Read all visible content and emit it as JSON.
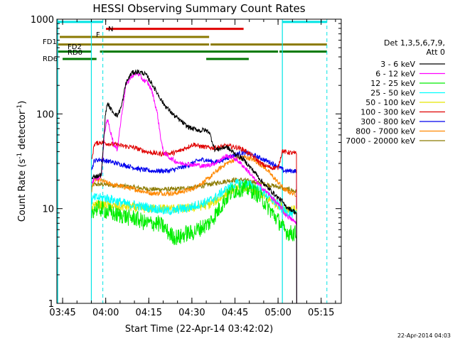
{
  "chart_data": {
    "type": "line",
    "title": "HESSI Observing Summary Count Rates",
    "xlabel": "Start Time (22-Apr-14 03:42:02)",
    "ylabel_main": "Count Rate (s",
    "ylabel_sup1": "-1",
    "ylabel_mid": " detector",
    "ylabel_sup2": "-1",
    "ylabel_end": ")",
    "yscale": "log",
    "ylim": [
      1,
      1000
    ],
    "xlim_minutes": [
      223.0,
      322.0
    ],
    "x_ticks": [
      {
        "minute": 225,
        "label": "03:45"
      },
      {
        "minute": 240,
        "label": "04:00"
      },
      {
        "minute": 255,
        "label": "04:15"
      },
      {
        "minute": 270,
        "label": "04:30"
      },
      {
        "minute": 285,
        "label": "04:45"
      },
      {
        "minute": 300,
        "label": "05:00"
      },
      {
        "minute": 315,
        "label": "05:15"
      }
    ],
    "y_ticks": [
      {
        "value": 1,
        "label": "1"
      },
      {
        "value": 10,
        "label": "10"
      },
      {
        "value": 100,
        "label": "100"
      },
      {
        "value": 1000,
        "label": "1000"
      }
    ],
    "legend_header": [
      "Det 1,3,5,6,7,9,",
      "Att 0"
    ],
    "date_stamp": "22-Apr-2014 04:03",
    "flag_labels": {
      "n": "N",
      "f": "F",
      "fd1": "FD1",
      "fd2": "FD2",
      "rd0": "RD0",
      "rd6": "RD6"
    },
    "flags": [
      {
        "name": "N",
        "color": "#00e5e5",
        "level": 935,
        "segments": [
          [
            223.3,
            239.0
          ],
          [
            301.5,
            317.0
          ]
        ]
      },
      {
        "name": "F",
        "color": "#e00000",
        "level": 790,
        "segments": [
          [
            240.1,
            288.0
          ]
        ]
      },
      {
        "name": "FD1",
        "color": "#8b7a00",
        "level": 650,
        "segments": [
          [
            224.0,
            276.0
          ]
        ]
      },
      {
        "name": "FD2",
        "color": "#8b7a00",
        "level": 540,
        "segments": [
          [
            223.3,
            276.0
          ],
          [
            276.5,
            317.0
          ]
        ]
      },
      {
        "name": "RD0",
        "color": "#007700",
        "level": 455,
        "segments": [
          [
            223.3,
            235.0
          ],
          [
            238.0,
            300.0
          ],
          [
            300.5,
            317.0
          ]
        ]
      },
      {
        "name": "RD6",
        "color": "#007700",
        "level": 380,
        "segments": [
          [
            225.0,
            236.8
          ],
          [
            275.0,
            289.8
          ]
        ]
      }
    ],
    "vlines_solid": [
      223.3,
      235.0,
      301.5
    ],
    "vlines_dashed": [
      239.0,
      317.0
    ],
    "data_start": 235.0,
    "data_end": 306.5,
    "series": [
      {
        "name": "3 - 6 keV",
        "color": "#000000",
        "x": [
          235.0,
          236.0,
          237.0,
          238.5,
          239.8,
          240.5,
          242.0,
          244.0,
          245.5,
          247.0,
          249.0,
          251.0,
          253.0,
          254.0,
          256.0,
          258.0,
          260.0,
          262.0,
          264.0,
          266.0,
          268.0,
          270.0,
          272.0,
          273.0,
          274.0,
          276.0,
          278.0,
          280.0,
          282.0,
          284.0,
          286.0,
          288.0,
          290.0,
          292.0,
          294.0,
          296.0,
          298.0,
          300.0,
          301.5,
          302.0,
          304.0,
          306.5
        ],
        "y": [
          20,
          22,
          22,
          23,
          90,
          130,
          110,
          95,
          120,
          210,
          270,
          280,
          270,
          260,
          210,
          165,
          130,
          110,
          95,
          85,
          75,
          70,
          68,
          66,
          68,
          65,
          42,
          43,
          45,
          40,
          36,
          33,
          28,
          24,
          20,
          17,
          15,
          13,
          12,
          11,
          10,
          9
        ]
      },
      {
        "name": "6 - 12 keV",
        "color": "#ff00ff",
        "x": [
          235.0,
          236.0,
          238.5,
          239.5,
          240.5,
          242.0,
          243.0,
          244.0,
          245.5,
          247.0,
          249.0,
          251.0,
          253.0,
          254.5,
          256.0,
          258.0,
          259.0,
          260.0,
          262.0,
          264.0,
          266.0,
          268.0,
          270.0,
          272.0,
          274.0,
          276.0,
          278.0,
          280.0,
          282.0,
          284.0,
          286.0,
          288.0,
          290.0,
          292.0,
          294.0,
          296.0,
          298.0,
          300.0,
          301.5,
          302.0,
          304.0,
          306.5
        ],
        "y": [
          19,
          20,
          22,
          60,
          90,
          60,
          46,
          42,
          95,
          200,
          250,
          270,
          230,
          215,
          180,
          100,
          60,
          40,
          35,
          32,
          30,
          30,
          29,
          29,
          28,
          29,
          30,
          33,
          36,
          35,
          32,
          28,
          24,
          20,
          17,
          15,
          13,
          11,
          10,
          9,
          8,
          7
        ]
      },
      {
        "name": "12 - 25 keV",
        "color": "#00ee00",
        "x": [
          235.0,
          236.0,
          238.0,
          240.0,
          242.0,
          244.0,
          246.0,
          248.0,
          250.0,
          252.0,
          254.0,
          256.0,
          258.0,
          260.0,
          262.0,
          264.0,
          266.0,
          268.0,
          270.0,
          272.0,
          274.0,
          276.0,
          278.0,
          280.0,
          282.0,
          284.0,
          286.0,
          288.0,
          290.0,
          292.0,
          294.0,
          296.0,
          298.0,
          300.0,
          301.5,
          302.0,
          304.0,
          306.5
        ],
        "y": [
          9,
          10,
          10,
          9.5,
          9,
          8.5,
          8.5,
          8,
          8,
          7.5,
          7,
          7,
          7,
          6.5,
          5.5,
          5,
          5,
          5.5,
          5.5,
          6,
          6.5,
          7,
          8.5,
          10.5,
          13,
          15,
          16,
          16.5,
          16,
          15,
          13,
          11,
          9,
          7.5,
          6.5,
          6,
          5.5,
          5.5
        ]
      },
      {
        "name": "25 - 50 keV",
        "color": "#00ffff",
        "x": [
          235.0,
          236.0,
          238.0,
          240.0,
          242.0,
          244.0,
          246.0,
          248.0,
          250.0,
          252.0,
          254.0,
          256.0,
          258.0,
          260.0,
          262.0,
          264.0,
          266.0,
          268.0,
          270.0,
          272.0,
          274.0,
          276.0,
          278.0,
          280.0,
          282.0,
          284.0,
          286.0,
          288.0,
          290.0,
          292.0,
          294.0,
          296.0,
          298.0,
          300.0,
          301.5,
          302.0,
          304.0,
          306.5
        ],
        "y": [
          12,
          13,
          13,
          13,
          12.5,
          12,
          11.5,
          11,
          11,
          10.5,
          10.5,
          10,
          10,
          9.5,
          9.5,
          9.5,
          10,
          10,
          10.5,
          11,
          11.5,
          12,
          13,
          14.5,
          16,
          17.5,
          18.5,
          18.5,
          18,
          17,
          15.5,
          14,
          12.5,
          11,
          10,
          9.5,
          9,
          8.5
        ]
      },
      {
        "name": "50 - 100 keV",
        "color": "#e5e500",
        "x": [
          235.0,
          236.0,
          240.0,
          244.0,
          248.0,
          252.0,
          256.0,
          260.0,
          264.0,
          268.0,
          272.0,
          276.0,
          278.0,
          280.0,
          282.0,
          284.0,
          286.0,
          288.0,
          290.0,
          292.0,
          294.0,
          296.0,
          298.0,
          300.0,
          301.5,
          302.0,
          304.0,
          306.5
        ],
        "y": [
          10,
          11,
          11,
          10.5,
          10.5,
          10,
          10,
          10,
          10,
          10,
          10.5,
          11,
          12,
          13,
          14.5,
          16,
          17,
          17,
          16.5,
          15.5,
          14.5,
          13,
          12,
          11,
          10.5,
          10,
          10,
          9.5
        ]
      },
      {
        "name": "100 - 300 keV",
        "color": "#e00000",
        "x": [
          235.0,
          236.0,
          238.0,
          239.5,
          240.0,
          242.0,
          244.0,
          246.0,
          248.0,
          250.0,
          252.0,
          254.0,
          256.0,
          258.0,
          260.0,
          262.0,
          264.0,
          266.0,
          268.0,
          270.0,
          271.0,
          272.0,
          274.0,
          276.0,
          278.0,
          280.0,
          282.0,
          284.0,
          286.0,
          288.0,
          290.0,
          292.0,
          294.0,
          296.0,
          298.0,
          300.0,
          301.5,
          302.0,
          304.0,
          306.5
        ],
        "y": [
          30,
          48,
          50,
          50,
          49,
          48,
          47,
          46,
          45,
          44,
          42,
          40,
          39,
          38,
          38,
          38,
          39,
          41,
          44,
          47,
          48,
          46,
          45,
          44,
          44,
          45,
          46,
          45,
          44,
          42,
          38,
          34,
          30,
          28,
          27,
          27,
          41,
          40,
          39,
          38
        ]
      },
      {
        "name": "300 - 800 keV",
        "color": "#0000ee",
        "x": [
          235.0,
          236.0,
          238.0,
          240.0,
          242.0,
          244.0,
          246.0,
          248.0,
          250.0,
          252.0,
          254.0,
          256.0,
          258.0,
          260.0,
          262.0,
          264.0,
          266.0,
          268.0,
          270.0,
          272.0,
          274.0,
          276.0,
          278.0,
          280.0,
          282.0,
          284.0,
          286.0,
          288.0,
          290.0,
          292.0,
          294.0,
          296.0,
          298.0,
          300.0,
          301.5,
          302.0,
          304.0,
          306.5
        ],
        "y": [
          25,
          32,
          33,
          32,
          31,
          30,
          29,
          28,
          27,
          26,
          25.5,
          25,
          25,
          25,
          25,
          26,
          27,
          28,
          30,
          32,
          33,
          32,
          31,
          32,
          34,
          36,
          38,
          39,
          38,
          36,
          34,
          32,
          30,
          28,
          26,
          25,
          25,
          25
        ]
      },
      {
        "name": "800 - 7000 keV",
        "color": "#ff8800",
        "x": [
          235.0,
          236.0,
          238.0,
          240.0,
          242.0,
          244.0,
          246.0,
          248.0,
          250.0,
          252.0,
          254.0,
          256.0,
          258.0,
          260.0,
          262.0,
          264.0,
          266.0,
          268.0,
          270.0,
          272.0,
          274.0,
          276.0,
          278.0,
          280.0,
          282.0,
          284.0,
          286.0,
          288.0,
          290.0,
          292.0,
          294.0,
          296.0,
          298.0,
          300.0,
          301.5,
          302.0,
          304.0,
          306.5
        ],
        "y": [
          15,
          20,
          20,
          19,
          18,
          17.5,
          17,
          16.5,
          16,
          15.5,
          15,
          14.5,
          14.5,
          14.5,
          14.5,
          14.5,
          15,
          15.5,
          16,
          17.5,
          19,
          21,
          24,
          27,
          30,
          32,
          34,
          35,
          34,
          32,
          29,
          26,
          22,
          19,
          17,
          16,
          15,
          14
        ]
      },
      {
        "name": "7000 - 20000 keV",
        "color": "#8b7a00",
        "x": [
          235.0,
          236.0,
          240.0,
          244.0,
          248.0,
          252.0,
          256.0,
          260.0,
          264.0,
          268.0,
          272.0,
          276.0,
          280.0,
          284.0,
          288.0,
          292.0,
          296.0,
          300.0,
          301.5,
          302.0,
          304.0,
          306.5
        ],
        "y": [
          17,
          18,
          18,
          17.5,
          17,
          16.5,
          16,
          16,
          16,
          16.5,
          17,
          18,
          19,
          20,
          20,
          19,
          18,
          17,
          16.5,
          16,
          16,
          15
        ]
      }
    ]
  }
}
